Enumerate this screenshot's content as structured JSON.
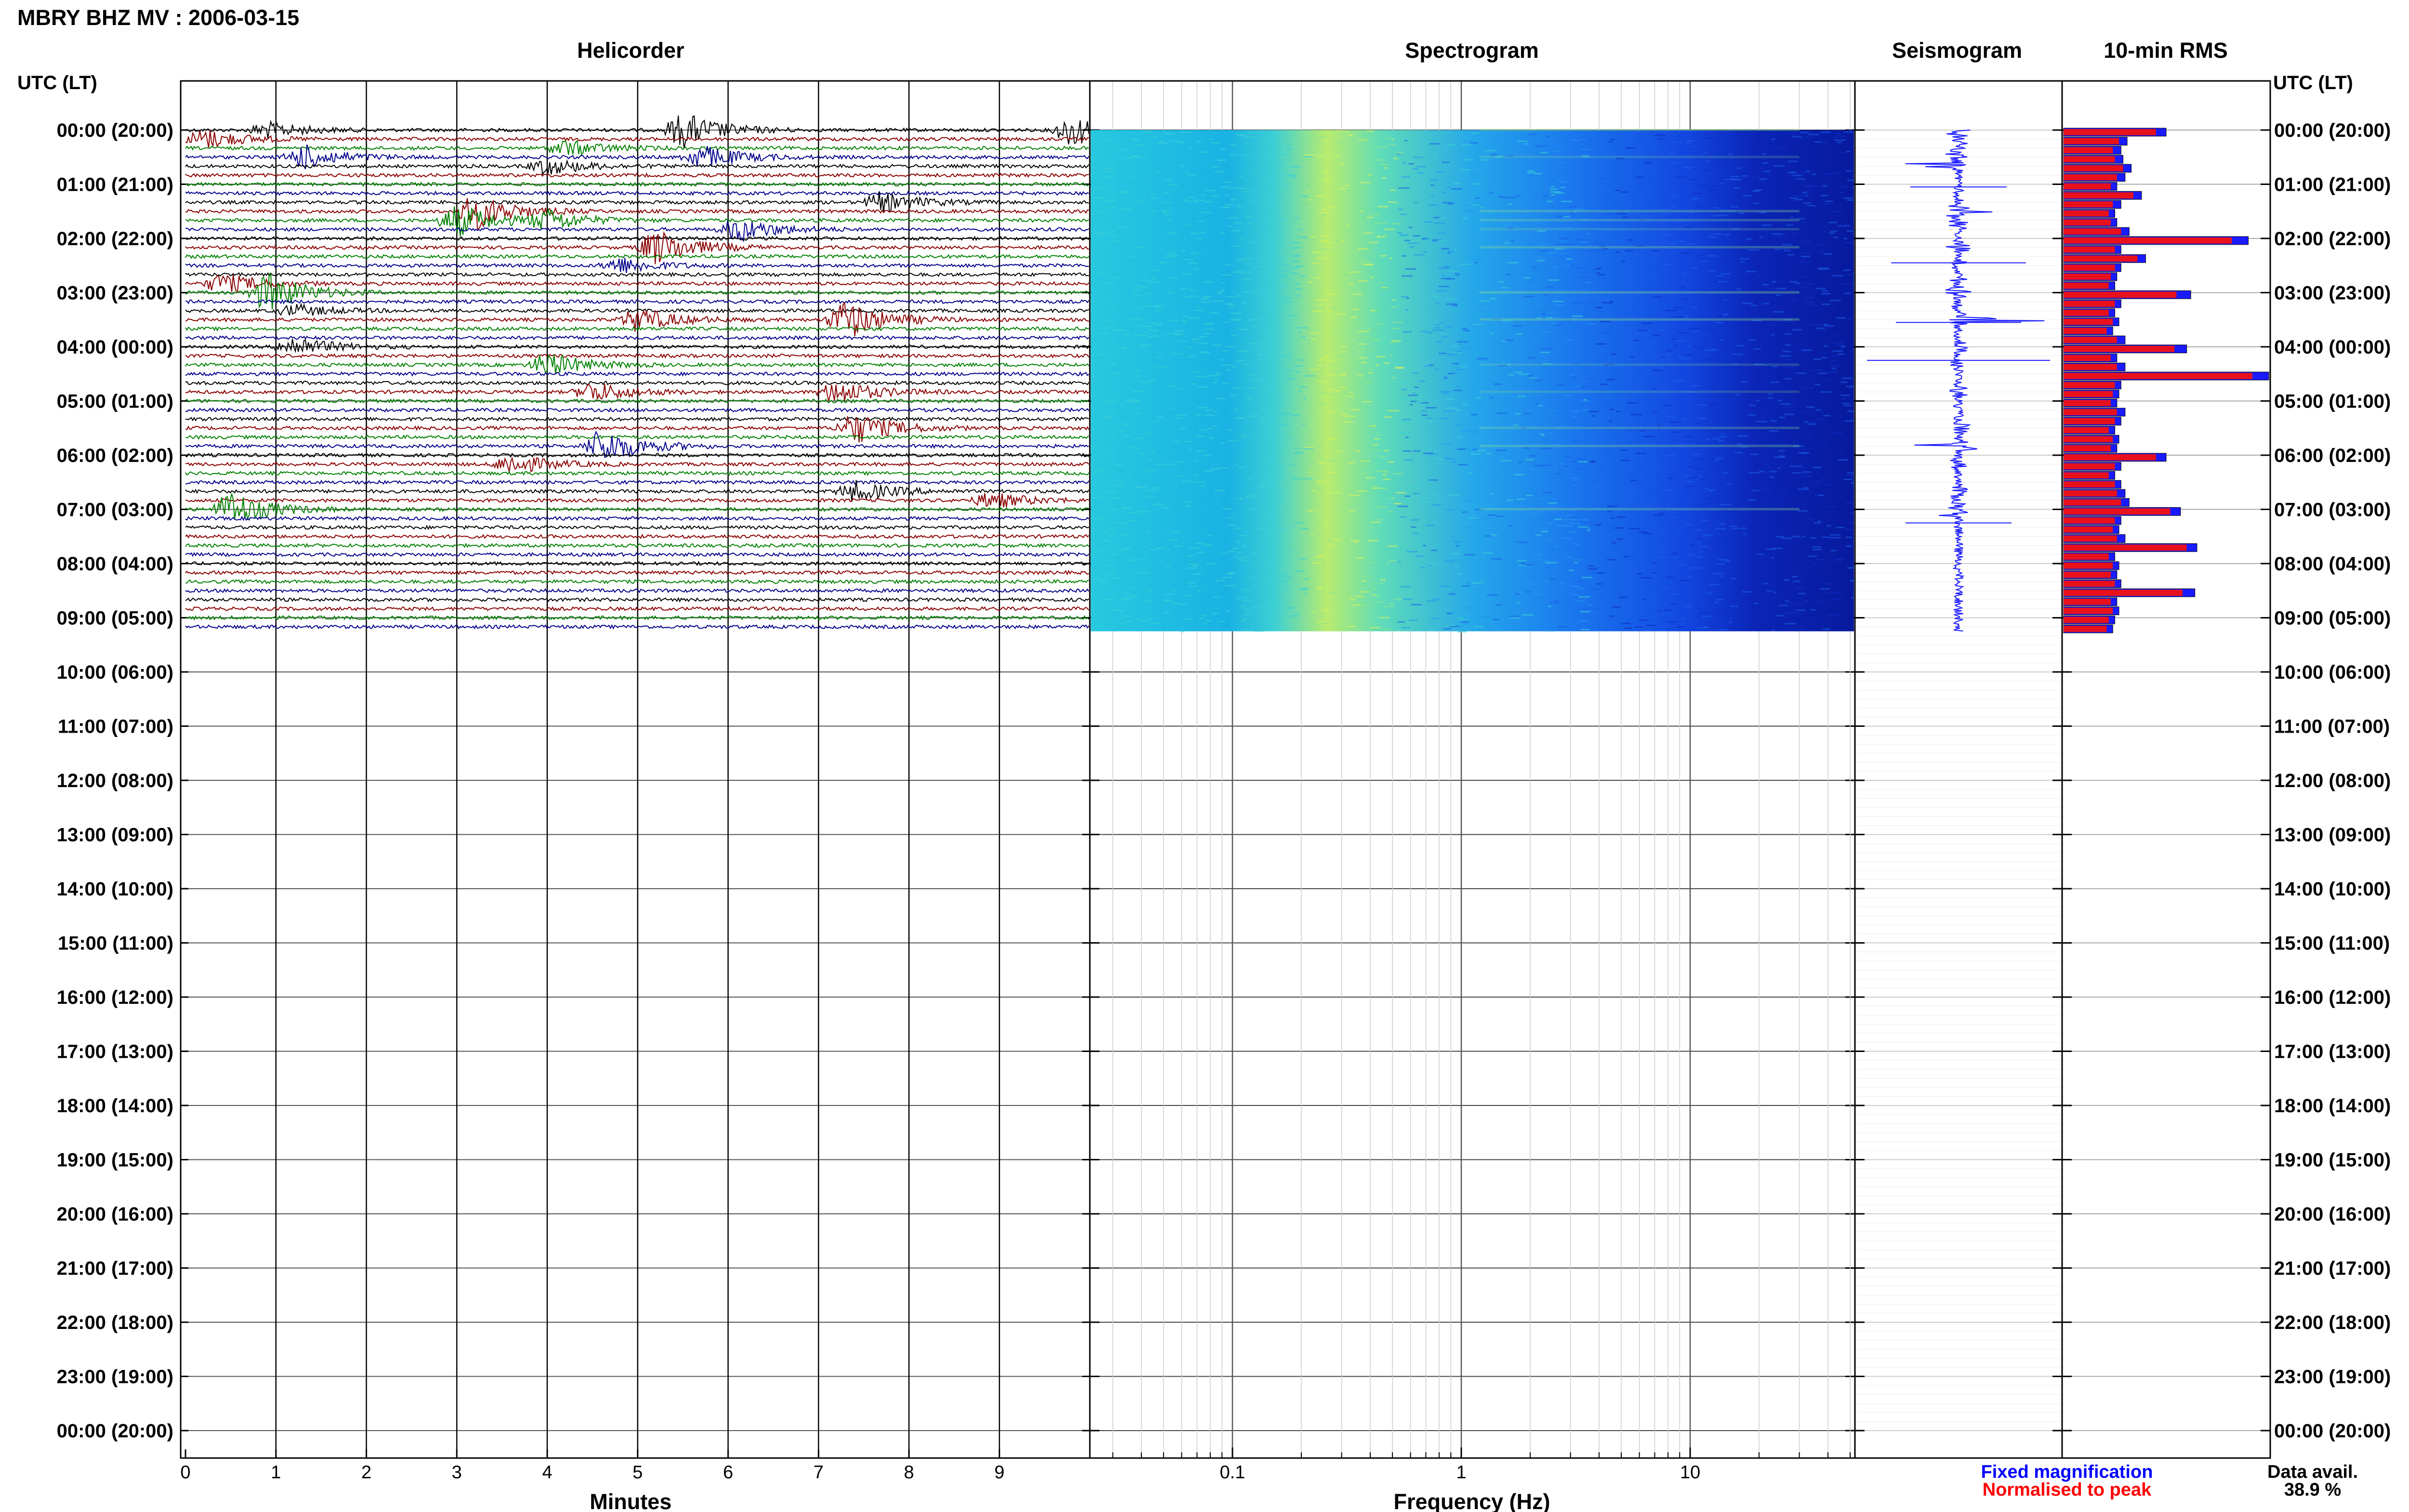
{
  "title": "MBRY BHZ MV : 2006-03-15",
  "panels": {
    "helicorder": "Helicorder",
    "spectrogram": "Spectrogram",
    "seismogram": "Seismogram",
    "rms": "10-min RMS"
  },
  "time_axis_label": "UTC (LT)",
  "row_labels": [
    "00:00 (20:00)",
    "01:00 (21:00)",
    "02:00 (22:00)",
    "03:00 (23:00)",
    "04:00 (00:00)",
    "05:00 (01:00)",
    "06:00 (02:00)",
    "07:00 (03:00)",
    "08:00 (04:00)",
    "09:00 (05:00)",
    "10:00 (06:00)",
    "11:00 (07:00)",
    "12:00 (08:00)",
    "13:00 (09:00)",
    "14:00 (10:00)",
    "15:00 (11:00)",
    "16:00 (12:00)",
    "17:00 (13:00)",
    "18:00 (14:00)",
    "19:00 (15:00)",
    "20:00 (16:00)",
    "21:00 (17:00)",
    "22:00 (18:00)",
    "23:00 (19:00)",
    "00:00 (20:00)"
  ],
  "helicorder_xlabel": "Minutes",
  "helicorder_ticks": [
    "0",
    "1",
    "2",
    "3",
    "4",
    "5",
    "6",
    "7",
    "8",
    "9"
  ],
  "spectrogram_xlabel": "Frequency (Hz)",
  "spectrogram_ticks": [
    "0.1",
    "1",
    "10"
  ],
  "legend": {
    "fixed": "Fixed magnification",
    "normalised": "Normalised to peak",
    "fixed_color": "#0000ff",
    "normalised_color": "#ff0000"
  },
  "data_avail": {
    "label": "Data avail.",
    "value": "38.9 %"
  },
  "colors": {
    "traces": [
      "#000000",
      "#8b0000",
      "#008000",
      "#00008b"
    ],
    "rms_fixed": "#1a1aff",
    "rms_norm": "#e8111b",
    "seismo": "#1a1aff"
  },
  "chart_data": {
    "type": "heatmap",
    "title": "MBRY BHZ MV : 2006-03-15",
    "station": "MBRY",
    "component": "BHZ",
    "date": "2006-03-15",
    "helicorder": {
      "x_unit": "Minutes",
      "xlim": [
        0,
        10
      ],
      "rows_per_hour": 6,
      "trace_count": 56,
      "events": [
        {
          "row": 0,
          "minute": 0.9,
          "amp": 0.4
        },
        {
          "row": 0,
          "minute": 5.5,
          "amp": 0.9
        },
        {
          "row": 0,
          "minute": 9.8,
          "amp": 0.8
        },
        {
          "row": 1,
          "minute": 0.2,
          "amp": 0.5
        },
        {
          "row": 2,
          "minute": 4.2,
          "amp": 0.4
        },
        {
          "row": 3,
          "minute": 1.3,
          "amp": 0.6
        },
        {
          "row": 3,
          "minute": 5.7,
          "amp": 0.6
        },
        {
          "row": 4,
          "minute": 4.0,
          "amp": 0.4
        },
        {
          "row": 8,
          "minute": 7.7,
          "amp": 0.5
        },
        {
          "row": 9,
          "minute": 3.2,
          "amp": 0.9
        },
        {
          "row": 10,
          "minute": 3.0,
          "amp": 0.8
        },
        {
          "row": 10,
          "minute": 4.0,
          "amp": 0.5
        },
        {
          "row": 11,
          "minute": 6.1,
          "amp": 0.6
        },
        {
          "row": 13,
          "minute": 5.2,
          "amp": 0.9
        },
        {
          "row": 15,
          "minute": 4.8,
          "amp": 0.4
        },
        {
          "row": 17,
          "minute": 0.4,
          "amp": 0.5
        },
        {
          "row": 18,
          "minute": 0.9,
          "amp": 1.0
        },
        {
          "row": 20,
          "minute": 1.2,
          "amp": 0.3
        },
        {
          "row": 21,
          "minute": 5.0,
          "amp": 0.6
        },
        {
          "row": 21,
          "minute": 7.3,
          "amp": 1.0
        },
        {
          "row": 24,
          "minute": 1.2,
          "amp": 0.5
        },
        {
          "row": 26,
          "minute": 4.0,
          "amp": 0.6
        },
        {
          "row": 29,
          "minute": 4.5,
          "amp": 0.5
        },
        {
          "row": 29,
          "minute": 7.2,
          "amp": 0.6
        },
        {
          "row": 33,
          "minute": 7.4,
          "amp": 0.8
        },
        {
          "row": 35,
          "minute": 4.6,
          "amp": 0.9
        },
        {
          "row": 37,
          "minute": 3.6,
          "amp": 0.5
        },
        {
          "row": 40,
          "minute": 7.4,
          "amp": 0.5
        },
        {
          "row": 41,
          "minute": 8.9,
          "amp": 0.4
        },
        {
          "row": 42,
          "minute": 0.5,
          "amp": 0.9
        }
      ]
    },
    "spectrogram": {
      "x_unit": "Hz",
      "scale": "log",
      "xlim": [
        0.025,
        50
      ],
      "peak_band_hz": [
        0.2,
        0.6
      ]
    },
    "rms": {
      "series": [
        {
          "name": "Fixed magnification",
          "values": [
            0.5,
            0.31,
            0.28,
            0.29,
            0.33,
            0.3,
            0.26,
            0.38,
            0.28,
            0.25,
            0.26,
            0.32,
            0.9,
            0.28,
            0.4,
            0.28,
            0.26,
            0.25,
            0.62,
            0.28,
            0.25,
            0.27,
            0.24,
            0.3,
            0.6,
            0.26,
            0.3,
            1.0,
            0.28,
            0.27,
            0.26,
            0.3,
            0.28,
            0.25,
            0.27,
            0.26,
            0.5,
            0.28,
            0.25,
            0.28,
            0.3,
            0.32,
            0.57,
            0.28,
            0.27,
            0.3,
            0.65,
            0.25,
            0.27,
            0.26,
            0.28,
            0.64,
            0.26,
            0.27,
            0.25,
            0.24
          ]
        },
        {
          "name": "Normalised to peak",
          "values": [
            0.45,
            0.27,
            0.24,
            0.25,
            0.29,
            0.26,
            0.23,
            0.34,
            0.24,
            0.22,
            0.23,
            0.28,
            0.82,
            0.25,
            0.36,
            0.25,
            0.23,
            0.22,
            0.55,
            0.25,
            0.22,
            0.24,
            0.21,
            0.26,
            0.54,
            0.23,
            0.26,
            0.92,
            0.25,
            0.24,
            0.23,
            0.26,
            0.25,
            0.22,
            0.24,
            0.23,
            0.45,
            0.25,
            0.22,
            0.25,
            0.26,
            0.28,
            0.52,
            0.25,
            0.24,
            0.26,
            0.6,
            0.22,
            0.24,
            0.23,
            0.25,
            0.58,
            0.23,
            0.24,
            0.22,
            0.21
          ]
        }
      ]
    }
  }
}
